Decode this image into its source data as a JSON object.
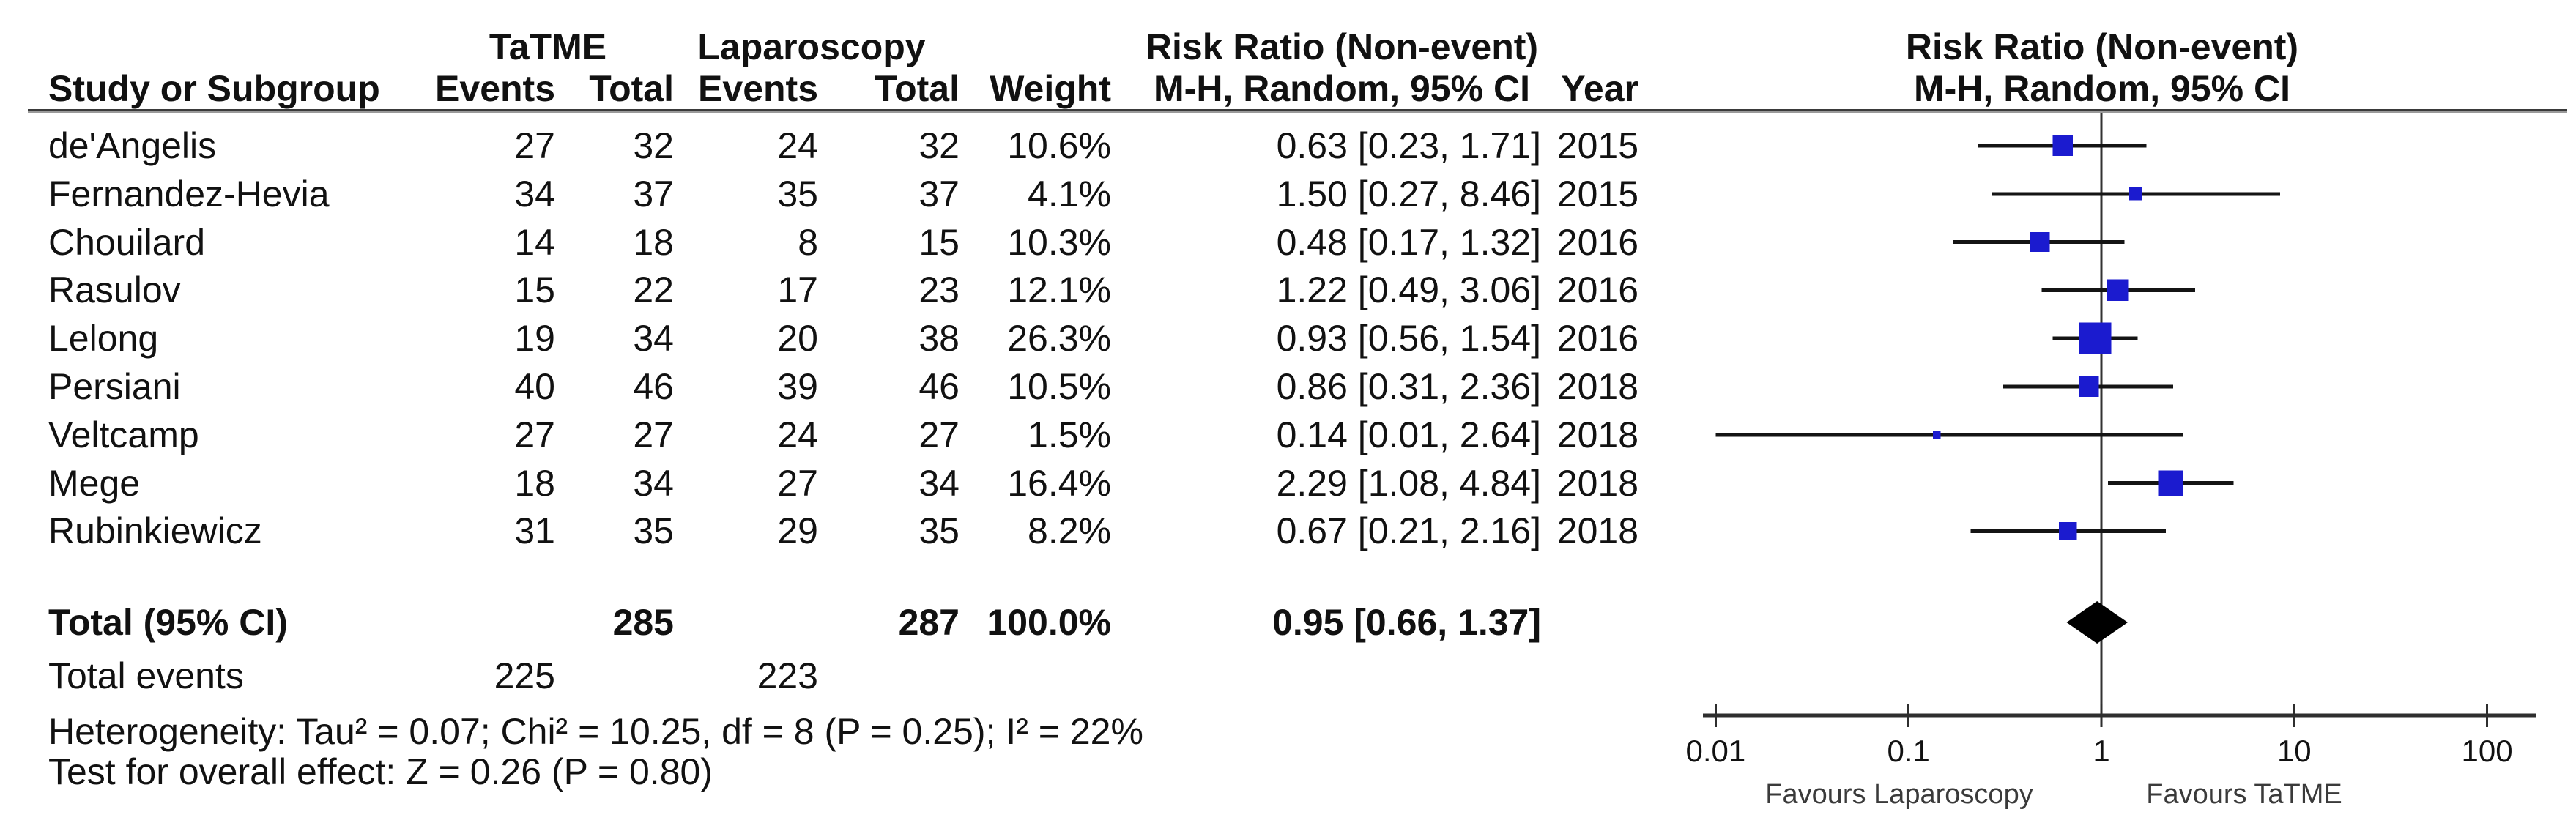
{
  "header": {
    "group1": "TaTME",
    "group2": "Laparoscopy",
    "study_col": "Study or Subgroup",
    "events_col": "Events",
    "total_col": "Total",
    "weight_col": "Weight",
    "rr_col_line1": "Risk Ratio (Non-event)",
    "rr_col_line2": "M-H, Random, 95% CI",
    "year_col": "Year",
    "plot_col_line1": "Risk Ratio (Non-event)",
    "plot_col_line2": "M-H, Random, 95% CI"
  },
  "chart_data": {
    "type": "forest",
    "effect_measure": "Risk Ratio (Non-event)",
    "method": "M-H, Random, 95% CI",
    "x_scale": "log10",
    "x_range": [
      0.01,
      100
    ],
    "x_ticks": [
      "0.01",
      "0.1",
      "1",
      "10",
      "100"
    ],
    "favours_left": "Favours Laparoscopy",
    "favours_right": "Favours TaTME",
    "studies": [
      {
        "name": "de'Angelis",
        "ev1": 27,
        "tot1": 32,
        "ev2": 24,
        "tot2": 32,
        "weight": "10.6%",
        "rr": 0.63,
        "lo": 0.23,
        "hi": 1.71,
        "rr_text": "0.63 [0.23, 1.71]",
        "year": "2015"
      },
      {
        "name": "Fernandez-Hevia",
        "ev1": 34,
        "tot1": 37,
        "ev2": 35,
        "tot2": 37,
        "weight": "4.1%",
        "rr": 1.5,
        "lo": 0.27,
        "hi": 8.46,
        "rr_text": "1.50 [0.27, 8.46]",
        "year": "2015"
      },
      {
        "name": "Chouilard",
        "ev1": 14,
        "tot1": 18,
        "ev2": 8,
        "tot2": 15,
        "weight": "10.3%",
        "rr": 0.48,
        "lo": 0.17,
        "hi": 1.32,
        "rr_text": "0.48 [0.17, 1.32]",
        "year": "2016"
      },
      {
        "name": "Rasulov",
        "ev1": 15,
        "tot1": 22,
        "ev2": 17,
        "tot2": 23,
        "weight": "12.1%",
        "rr": 1.22,
        "lo": 0.49,
        "hi": 3.06,
        "rr_text": "1.22 [0.49, 3.06]",
        "year": "2016"
      },
      {
        "name": "Lelong",
        "ev1": 19,
        "tot1": 34,
        "ev2": 20,
        "tot2": 38,
        "weight": "26.3%",
        "rr": 0.93,
        "lo": 0.56,
        "hi": 1.54,
        "rr_text": "0.93 [0.56, 1.54]",
        "year": "2016"
      },
      {
        "name": "Persiani",
        "ev1": 40,
        "tot1": 46,
        "ev2": 39,
        "tot2": 46,
        "weight": "10.5%",
        "rr": 0.86,
        "lo": 0.31,
        "hi": 2.36,
        "rr_text": "0.86 [0.31, 2.36]",
        "year": "2018"
      },
      {
        "name": "Veltcamp",
        "ev1": 27,
        "tot1": 27,
        "ev2": 24,
        "tot2": 27,
        "weight": "1.5%",
        "rr": 0.14,
        "lo": 0.01,
        "hi": 2.64,
        "rr_text": "0.14 [0.01, 2.64]",
        "year": "2018"
      },
      {
        "name": "Mege",
        "ev1": 18,
        "tot1": 34,
        "ev2": 27,
        "tot2": 34,
        "weight": "16.4%",
        "rr": 2.29,
        "lo": 1.08,
        "hi": 4.84,
        "rr_text": "2.29 [1.08, 4.84]",
        "year": "2018"
      },
      {
        "name": "Rubinkiewicz",
        "ev1": 31,
        "tot1": 35,
        "ev2": 29,
        "tot2": 35,
        "weight": "8.2%",
        "rr": 0.67,
        "lo": 0.21,
        "hi": 2.16,
        "rr_text": "0.67 [0.21, 2.16]",
        "year": "2018"
      }
    ],
    "total": {
      "label": "Total (95% CI)",
      "tot1": 285,
      "tot2": 287,
      "weight": "100.0%",
      "rr": 0.95,
      "lo": 0.66,
      "hi": 1.37,
      "rr_text": "0.95 [0.66, 1.37]"
    },
    "total_events": {
      "label": "Total events",
      "ev1": 225,
      "ev2": 223
    },
    "heterogeneity": "Heterogeneity: Tau² = 0.07; Chi² = 10.25, df = 8 (P = 0.25); I² = 22%",
    "overall_effect": "Test for overall effect: Z = 0.26 (P = 0.80)",
    "colors": {
      "square": "#1b1bcf",
      "ci_line": "#141414",
      "diamond": "#000000",
      "axis": "#2e2e2e",
      "text": "#111111",
      "favours_text": "#3a3a3a"
    }
  }
}
